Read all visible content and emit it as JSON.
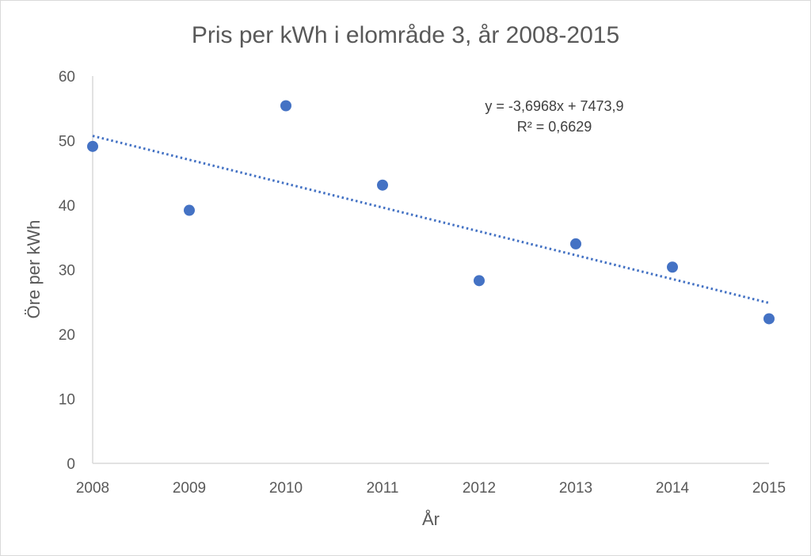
{
  "chart_data": {
    "type": "scatter",
    "title": "Pris per kWh i elområde 3, år 2008-2015",
    "xlabel": "År",
    "ylabel": "Öre per kWh",
    "xlim": [
      2008,
      2015
    ],
    "ylim": [
      0,
      60
    ],
    "x_ticks": [
      "2008",
      "2009",
      "2010",
      "2011",
      "2012",
      "2013",
      "2014",
      "2015"
    ],
    "y_ticks": [
      "0",
      "10",
      "20",
      "30",
      "40",
      "50",
      "60"
    ],
    "grid": false,
    "legend": "none",
    "series": [
      {
        "x": [
          2008,
          2009,
          2010,
          2011,
          2012,
          2013,
          2014,
          2015
        ],
        "y": [
          49.1,
          39.2,
          55.4,
          43.1,
          28.3,
          34.0,
          30.4,
          22.4
        ],
        "color": "#4472c4"
      }
    ],
    "trendline": {
      "type": "linear",
      "style": "dotted",
      "color": "#4472c4",
      "slope": -3.6968,
      "intercept": 7473.9,
      "equation_label": "y = -3,6968x + 7473,9",
      "r2_label": "R² = 0,6629"
    }
  }
}
